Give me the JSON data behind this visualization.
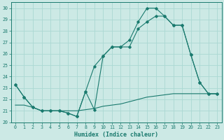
{
  "xlabel": "Humidex (Indice chaleur)",
  "xlim": [
    -0.5,
    23.5
  ],
  "ylim": [
    20,
    30.5
  ],
  "xticks": [
    0,
    1,
    2,
    3,
    4,
    5,
    6,
    7,
    8,
    9,
    10,
    11,
    12,
    13,
    14,
    15,
    16,
    17,
    18,
    19,
    20,
    21,
    22,
    23
  ],
  "yticks": [
    20,
    21,
    22,
    23,
    24,
    25,
    26,
    27,
    28,
    29,
    30
  ],
  "bg_color": "#cce9e5",
  "line_color": "#1a7a6e",
  "grid_color": "#aad8d3",
  "line1_x": [
    0,
    1,
    2,
    3,
    4,
    5,
    6,
    7,
    8,
    9,
    10,
    11,
    12,
    13,
    14,
    15,
    16,
    17,
    18,
    19,
    20,
    21,
    22,
    23
  ],
  "line1_y": [
    23.3,
    22.2,
    21.3,
    21.0,
    21.0,
    21.0,
    20.8,
    20.5,
    22.7,
    21.1,
    25.8,
    26.6,
    26.6,
    27.2,
    28.8,
    30.0,
    30.0,
    29.3,
    28.5,
    28.5,
    25.9,
    23.5,
    22.5,
    22.5
  ],
  "line2_x": [
    0,
    1,
    2,
    3,
    4,
    5,
    6,
    7,
    8,
    9,
    10,
    11,
    12,
    13,
    14,
    15,
    16,
    17,
    18,
    19,
    20,
    21,
    22,
    23
  ],
  "line2_y": [
    23.3,
    22.2,
    21.3,
    21.0,
    21.0,
    21.0,
    20.8,
    20.5,
    22.7,
    24.9,
    25.8,
    26.6,
    26.6,
    26.6,
    28.2,
    28.8,
    29.3,
    29.3,
    28.5,
    28.5,
    25.9,
    23.5,
    22.5,
    22.5
  ],
  "line3_x": [
    0,
    1,
    2,
    3,
    4,
    5,
    6,
    7,
    8,
    9,
    10,
    11,
    12,
    13,
    14,
    15,
    16,
    17,
    18,
    19,
    20,
    21,
    22,
    23
  ],
  "line3_y": [
    21.5,
    21.5,
    21.3,
    21.0,
    21.0,
    21.0,
    21.0,
    21.0,
    21.1,
    21.2,
    21.4,
    21.5,
    21.6,
    21.8,
    22.0,
    22.2,
    22.3,
    22.4,
    22.5,
    22.5,
    22.5,
    22.5,
    22.5,
    22.5
  ]
}
